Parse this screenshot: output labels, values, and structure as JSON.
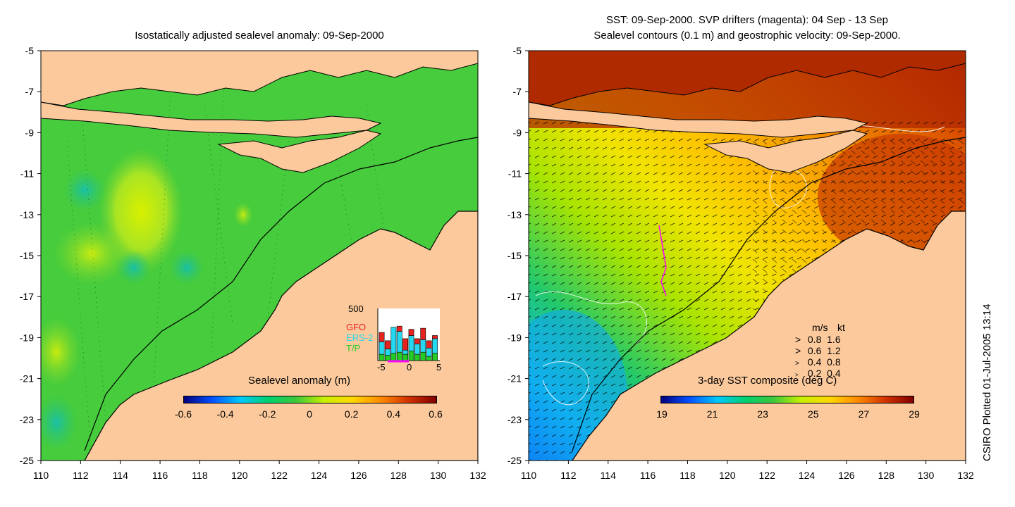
{
  "left_panel": {
    "title": "Isostatically adjusted sealevel anomaly: 09-Sep-2000",
    "colorbar": {
      "label": "Sealevel anomaly (m)",
      "ticks": [
        "-0.6",
        "-0.4",
        "-0.2",
        "0",
        "0.2",
        "0.4",
        "0.6"
      ],
      "range": [
        -0.6,
        0.6
      ],
      "colors": [
        "#00007f",
        "#0050ff",
        "#00c8ff",
        "#00d070",
        "#3cc83c",
        "#c8f000",
        "#ffd800",
        "#ff8c00",
        "#d23200",
        "#7f0000"
      ]
    },
    "inset": {
      "max_label": "500",
      "missions": [
        {
          "name": "GFO",
          "color": "#e8231f"
        },
        {
          "name": "ERS-2",
          "color": "#24d8f0"
        },
        {
          "name": "T/P",
          "color": "#22cc22"
        }
      ],
      "x_ticks": [
        "-5",
        "0",
        "5"
      ],
      "bars": [
        {
          "day": -4,
          "tp": 60,
          "ers": 120,
          "gfo": 90
        },
        {
          "day": -3,
          "tp": 50,
          "ers": 60,
          "gfo": 80
        },
        {
          "day": -2,
          "tp": 70,
          "ers": 250,
          "gfo": 0
        },
        {
          "day": -1,
          "tp": 80,
          "ers": 200,
          "gfo": 50
        },
        {
          "day": 0,
          "tp": 60,
          "ers": 40,
          "gfo": 110
        },
        {
          "day": 1,
          "tp": 90,
          "ers": 150,
          "gfo": 60
        },
        {
          "day": 2,
          "tp": 60,
          "ers": 100,
          "gfo": 50
        },
        {
          "day": 3,
          "tp": 80,
          "ers": 120,
          "gfo": 110
        },
        {
          "day": 4,
          "tp": 40,
          "ers": 80,
          "gfo": 70
        },
        {
          "day": 5,
          "tp": 70,
          "ers": 140,
          "gfo": 30
        }
      ]
    }
  },
  "right_panel": {
    "title_line1": "SST: 09-Sep-2000. SVP drifters (magenta): 04 Sep - 13 Sep",
    "title_line2": "Sealevel contours (0.1 m) and geostrophic velocity: 09-Sep-2000.",
    "colorbar": {
      "label": "3-day SST composite (deg C)",
      "ticks": [
        "19",
        "21",
        "23",
        "25",
        "27",
        "29"
      ],
      "range": [
        19,
        29
      ],
      "colors": [
        "#00007f",
        "#0050ff",
        "#00c8ff",
        "#00d070",
        "#3cc83c",
        "#c8f000",
        "#ffd800",
        "#ff8c00",
        "#d23200",
        "#7f0000"
      ]
    },
    "velocity_legend": {
      "header_ms": "m/s",
      "header_kt": "kt",
      "rows": [
        {
          "ms": "0.8",
          "kt": "1.6"
        },
        {
          "ms": "0.6",
          "kt": "1.2"
        },
        {
          "ms": "0.4",
          "kt": "0.8"
        },
        {
          "ms": "0.2",
          "kt": "0.4"
        }
      ]
    }
  },
  "axes": {
    "lat_labels": [
      "-5",
      "-7",
      "-9",
      "-11",
      "-13",
      "-15",
      "-17",
      "-19",
      "-21",
      "-23",
      "-25"
    ],
    "lon_labels": [
      "110",
      "112",
      "114",
      "116",
      "118",
      "120",
      "122",
      "124",
      "126",
      "128",
      "130",
      "132"
    ],
    "lat_range": [
      -25,
      -5
    ],
    "lon_range": [
      110,
      132
    ]
  },
  "footer": {
    "credit": "CSIRO Plotted 01-Jul-2005 13:14"
  },
  "colors": {
    "land": "#fbc99c",
    "coastline": "#000000"
  }
}
